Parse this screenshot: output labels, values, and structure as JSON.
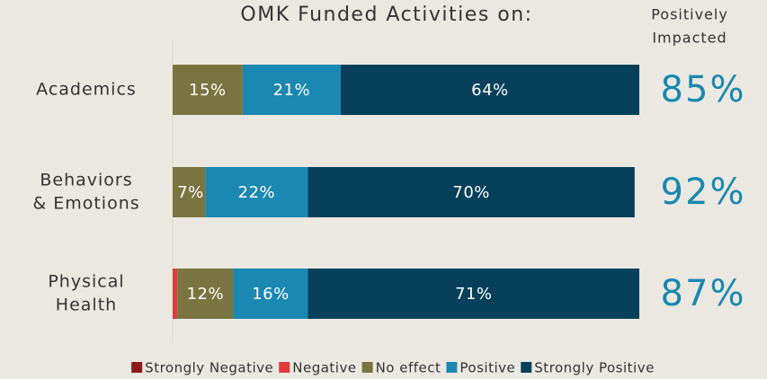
{
  "chart_data": {
    "type": "stacked-bar-horizontal",
    "title": "OMK Funded Activities on:",
    "categories": [
      [
        "Academics"
      ],
      [
        "Behaviors",
        "& Emotions"
      ],
      [
        "Physical",
        "Health"
      ]
    ],
    "xlim": [
      0,
      100
    ],
    "series": [
      {
        "name": "Strongly Negative",
        "color": "#8b1a1a",
        "values": [
          0,
          0,
          0
        ]
      },
      {
        "name": "Negative",
        "color": "#e03a3a",
        "values": [
          0,
          0,
          1
        ]
      },
      {
        "name": "No effect",
        "color": "#7a7540",
        "values": [
          15,
          7,
          12
        ],
        "value_labels": [
          "15%",
          "7%",
          "12%"
        ]
      },
      {
        "name": "Positive",
        "color": "#1a88b0",
        "values": [
          21,
          22,
          16
        ],
        "value_labels": [
          "21%",
          "22%",
          "16%"
        ]
      },
      {
        "name": "Strongly Positive",
        "color": "#07405a",
        "values": [
          64,
          70,
          71
        ],
        "value_labels": [
          "64%",
          "70%",
          "71%"
        ]
      }
    ],
    "totals": {
      "label": [
        "Positively",
        "Impacted"
      ],
      "values": [
        85,
        92,
        87
      ],
      "value_labels": [
        "85%",
        "92%",
        "87%"
      ]
    }
  }
}
